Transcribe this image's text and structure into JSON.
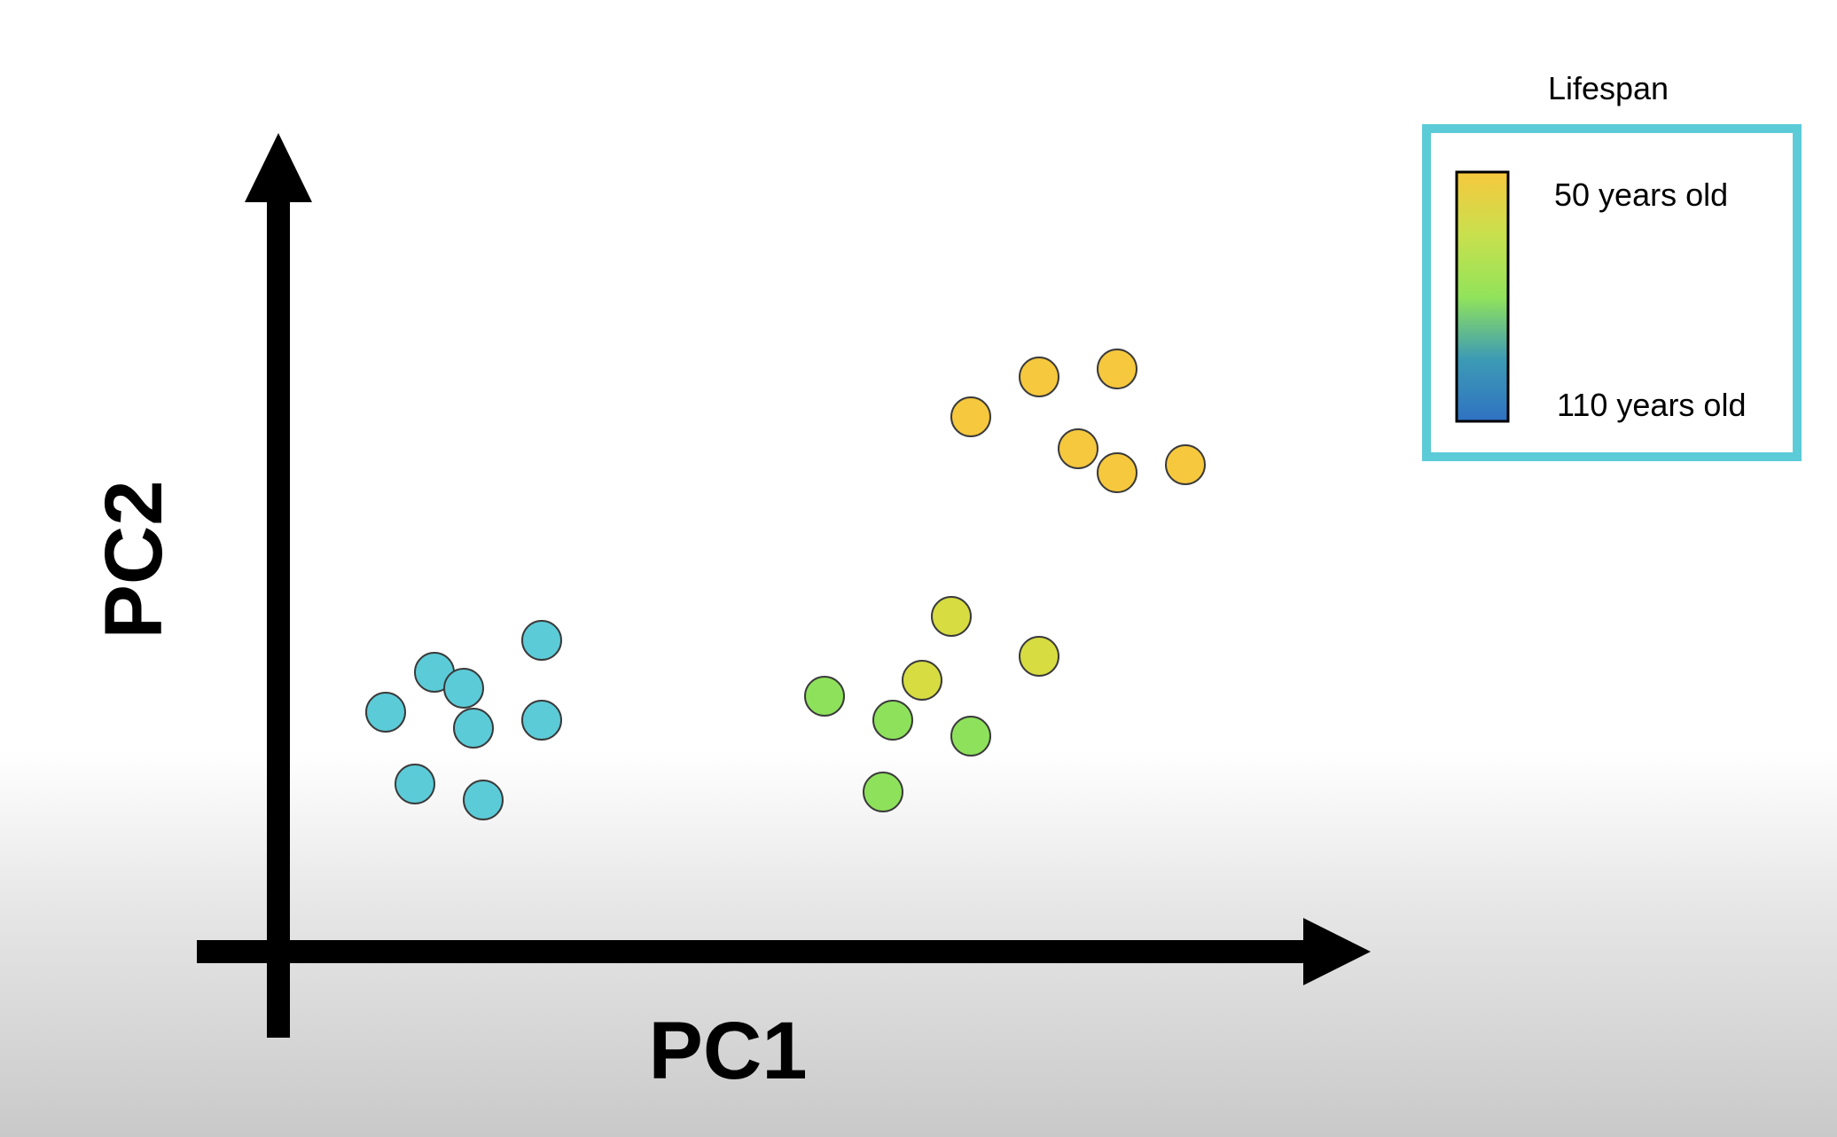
{
  "chart_data": {
    "type": "scatter",
    "title": "",
    "xlabel": "PC1",
    "ylabel": "PC2",
    "xlim": [
      0,
      12
    ],
    "ylim": [
      0,
      9
    ],
    "grid": false,
    "ticks": false,
    "legend": {
      "type": "colorbar",
      "placement": "top-right",
      "title": "Lifespan",
      "top_label": "50 years old",
      "bottom_label": "110 years old",
      "gradient_colors": [
        "#f6c83d",
        "#c9e04d",
        "#92e35a",
        "#3d9bb5",
        "#2f72c2"
      ],
      "border_color": "#5ccbd8"
    },
    "points": [
      {
        "x": 1.1,
        "y": 3.0,
        "color": "#5ccbd8"
      },
      {
        "x": 1.6,
        "y": 3.5,
        "color": "#5ccbd8"
      },
      {
        "x": 1.9,
        "y": 3.3,
        "color": "#5ccbd8"
      },
      {
        "x": 2.0,
        "y": 2.8,
        "color": "#5ccbd8"
      },
      {
        "x": 1.4,
        "y": 2.1,
        "color": "#5ccbd8"
      },
      {
        "x": 2.1,
        "y": 1.9,
        "color": "#5ccbd8"
      },
      {
        "x": 2.7,
        "y": 3.9,
        "color": "#5ccbd8"
      },
      {
        "x": 2.7,
        "y": 2.9,
        "color": "#5ccbd8"
      },
      {
        "x": 5.6,
        "y": 3.2,
        "color": "#8ee25b"
      },
      {
        "x": 6.3,
        "y": 2.9,
        "color": "#8ee25b"
      },
      {
        "x": 6.2,
        "y": 2.0,
        "color": "#8ee25b"
      },
      {
        "x": 7.1,
        "y": 2.7,
        "color": "#8ee25b"
      },
      {
        "x": 6.6,
        "y": 3.4,
        "color": "#d7dd41"
      },
      {
        "x": 6.9,
        "y": 4.2,
        "color": "#d7dd41"
      },
      {
        "x": 7.8,
        "y": 3.7,
        "color": "#d7dd41"
      },
      {
        "x": 7.1,
        "y": 6.7,
        "color": "#f6c83d"
      },
      {
        "x": 7.8,
        "y": 7.2,
        "color": "#f6c83d"
      },
      {
        "x": 8.6,
        "y": 7.3,
        "color": "#f6c83d"
      },
      {
        "x": 8.2,
        "y": 6.3,
        "color": "#f6c83d"
      },
      {
        "x": 8.6,
        "y": 6.0,
        "color": "#f6c83d"
      },
      {
        "x": 9.3,
        "y": 6.1,
        "color": "#f6c83d"
      }
    ]
  }
}
